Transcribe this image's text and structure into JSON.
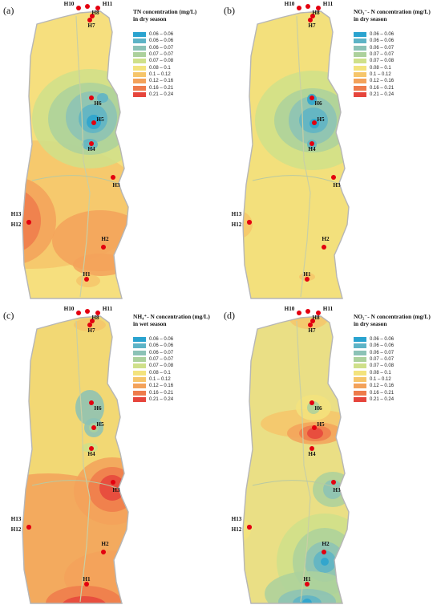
{
  "legend": {
    "colors": [
      "#2aa3cf",
      "#5db3c6",
      "#8bc2b6",
      "#acd19c",
      "#cfe08a",
      "#f3e37d",
      "#f6c56a",
      "#f3a25a",
      "#ee7b4b",
      "#e6453c"
    ],
    "ranges": [
      "0.06 – 0.06",
      "0.06 – 0.06",
      "0.06 – 0.07",
      "0.07 – 0.07",
      "0.07 – 0.08",
      "0.08 – 0.1",
      "0.1 – 0.12",
      "0.12 – 0.16",
      "0.16 – 0.21",
      "0.21 – 0.24"
    ]
  },
  "panels": [
    {
      "label": "(a)",
      "title": [
        "TN concentration (mg/L)",
        "in dry season"
      ],
      "base_color": "#f6df7e",
      "sites": [
        {
          "name": "H9"
        },
        {
          "name": "H10"
        },
        {
          "name": "H11"
        },
        {
          "name": "H8"
        },
        {
          "name": "H7"
        },
        {
          "name": "H6"
        },
        {
          "name": "H5"
        },
        {
          "name": "H4"
        },
        {
          "name": "H3"
        },
        {
          "name": "H13"
        },
        {
          "name": "H12"
        },
        {
          "name": "H2"
        },
        {
          "name": "H1"
        }
      ]
    },
    {
      "label": "(b)",
      "title": [
        "NO₃⁻- N concentration (mg/L)",
        "in dry season"
      ],
      "base_color": "#f3e07c",
      "sites": [
        {
          "name": "H9"
        },
        {
          "name": "H10"
        },
        {
          "name": "H11"
        },
        {
          "name": "H8"
        },
        {
          "name": "H7"
        },
        {
          "name": "H6"
        },
        {
          "name": "H5"
        },
        {
          "name": "H4"
        },
        {
          "name": "H3"
        },
        {
          "name": "H13"
        },
        {
          "name": "H12"
        },
        {
          "name": "H2"
        },
        {
          "name": "H1"
        }
      ]
    },
    {
      "label": "(c)",
      "title": [
        "NH₄⁺- N concentration (mg/L)",
        "in wet season"
      ],
      "base_color": "#f2d874",
      "sites": [
        {
          "name": "H9"
        },
        {
          "name": "H10"
        },
        {
          "name": "H11"
        },
        {
          "name": "H8"
        },
        {
          "name": "H7"
        },
        {
          "name": "H6"
        },
        {
          "name": "H5"
        },
        {
          "name": "H4"
        },
        {
          "name": "H3"
        },
        {
          "name": "H13"
        },
        {
          "name": "H12"
        },
        {
          "name": "H2"
        },
        {
          "name": "H1"
        }
      ]
    },
    {
      "label": "(d)",
      "title": [
        "NO₂⁻- N concentration (mg/L)",
        "in dry season"
      ],
      "base_color": "#eadf85",
      "sites": [
        {
          "name": "H9"
        },
        {
          "name": "H10"
        },
        {
          "name": "H11"
        },
        {
          "name": "H8"
        },
        {
          "name": "H7"
        },
        {
          "name": "H6"
        },
        {
          "name": "H5"
        },
        {
          "name": "H4"
        },
        {
          "name": "H3"
        },
        {
          "name": "H13"
        },
        {
          "name": "H12"
        },
        {
          "name": "H2"
        },
        {
          "name": "H1"
        }
      ]
    }
  ]
}
